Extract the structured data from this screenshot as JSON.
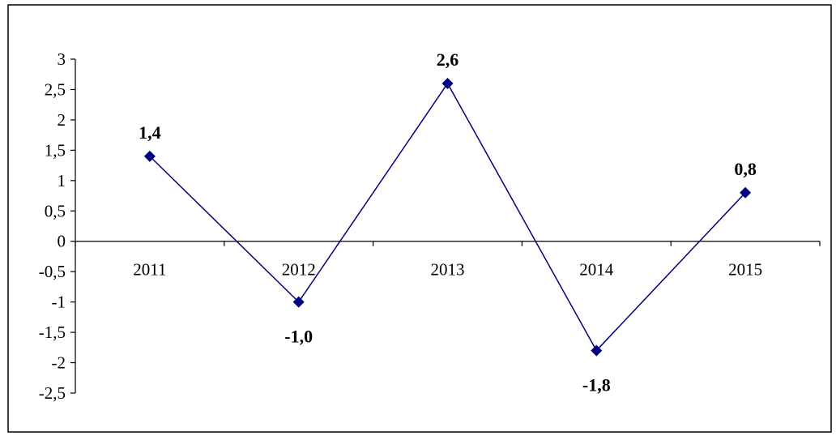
{
  "chart_data": {
    "type": "line",
    "categories": [
      "2011",
      "2012",
      "2013",
      "2014",
      "2015"
    ],
    "series": [
      {
        "values": [
          1.4,
          -1.0,
          2.6,
          -1.8,
          0.8
        ]
      }
    ],
    "data_labels": [
      "1,4",
      "-1,0",
      "2,6",
      "-1,8",
      "0,8"
    ],
    "y_ticks": [
      3,
      2.5,
      2,
      1.5,
      1,
      0.5,
      0,
      -0.5,
      -1,
      -1.5,
      -2,
      -2.5
    ],
    "y_tick_labels": [
      "3",
      "2,5",
      "2",
      "1,5",
      "1",
      "0,5",
      "0",
      "-0,5",
      "-1",
      "-1,5",
      "-2",
      "-2,5"
    ],
    "ylim": [
      -2.5,
      3
    ],
    "grid": false,
    "legend": "none",
    "colors": {
      "line": "#000080",
      "marker": "#000080",
      "axis": "#000000",
      "frame": "#000000"
    },
    "marker": "diamond"
  }
}
